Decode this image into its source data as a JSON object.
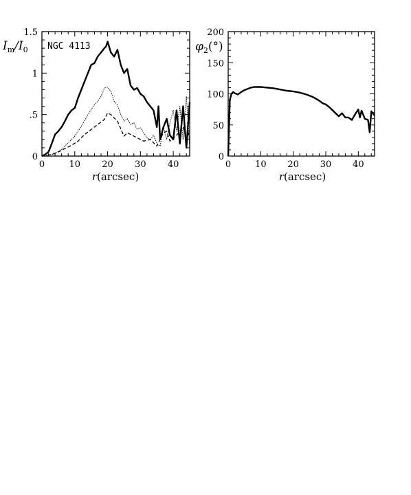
{
  "chart_data": [
    {
      "type": "line",
      "ylabel_main": "I",
      "ylabel_main_sub": "m",
      "ylabel_sep": "/I",
      "ylabel_den_sub": "0",
      "xlabel_r": "r",
      "xlabel_unit": "(arcsec)",
      "annotation": "NGC 4113",
      "xlim": [
        0,
        45
      ],
      "ylim": [
        0,
        1.5
      ],
      "xticks": [
        0,
        10,
        20,
        30,
        40
      ],
      "xtick_labels": [
        "0",
        "10",
        "20",
        "30",
        "40"
      ],
      "yticks": [
        0,
        0.5,
        1,
        1.5
      ],
      "ytick_labels": [
        "0",
        ".5",
        "1",
        "1.5"
      ],
      "series": [
        {
          "style": "solid-thick",
          "x": [
            0,
            1,
            2,
            3,
            4,
            5,
            6,
            7,
            8,
            9,
            10,
            11,
            12,
            13,
            14,
            15,
            16,
            17,
            18,
            19,
            19.5,
            20,
            21,
            22,
            23,
            24,
            25,
            26,
            27,
            28,
            29,
            30,
            31,
            32,
            33,
            34,
            35,
            35.5,
            36,
            37,
            38,
            39,
            40,
            41,
            42,
            43,
            44,
            45
          ],
          "y": [
            0.0,
            0.02,
            0.05,
            0.15,
            0.26,
            0.3,
            0.35,
            0.42,
            0.5,
            0.55,
            0.58,
            0.7,
            0.8,
            0.9,
            1.0,
            1.1,
            1.12,
            1.2,
            1.25,
            1.3,
            1.32,
            1.38,
            1.25,
            1.2,
            1.28,
            1.1,
            1.0,
            1.05,
            0.85,
            0.8,
            0.82,
            0.75,
            0.72,
            0.65,
            0.6,
            0.55,
            0.35,
            0.6,
            0.2,
            0.35,
            0.45,
            0.25,
            0.2,
            0.55,
            0.15,
            0.6,
            0.1,
            0.65
          ]
        },
        {
          "style": "dotted",
          "x": [
            0,
            2,
            4,
            6,
            8,
            10,
            12,
            14,
            15,
            16,
            17,
            18,
            19,
            20,
            21,
            22,
            23,
            24,
            25,
            26,
            27,
            28,
            29,
            30,
            31,
            32,
            33,
            34,
            35,
            36,
            37,
            38,
            39,
            40,
            41,
            42,
            43,
            44,
            45
          ],
          "y": [
            0.0,
            0.01,
            0.03,
            0.08,
            0.16,
            0.24,
            0.36,
            0.5,
            0.56,
            0.62,
            0.66,
            0.72,
            0.82,
            0.83,
            0.78,
            0.66,
            0.62,
            0.5,
            0.42,
            0.45,
            0.38,
            0.4,
            0.32,
            0.34,
            0.28,
            0.22,
            0.2,
            0.25,
            0.15,
            0.12,
            0.35,
            0.2,
            0.4,
            0.55,
            0.3,
            0.6,
            0.2,
            0.72,
            0.1
          ]
        },
        {
          "style": "dashed",
          "x": [
            0,
            3,
            5,
            7,
            9,
            11,
            13,
            15,
            17,
            19,
            20,
            21,
            23,
            25,
            26,
            27,
            29,
            31,
            33,
            35,
            37,
            38,
            39,
            41,
            43,
            44,
            45
          ],
          "y": [
            0.0,
            0.02,
            0.05,
            0.09,
            0.13,
            0.18,
            0.26,
            0.32,
            0.38,
            0.44,
            0.52,
            0.5,
            0.42,
            0.24,
            0.28,
            0.26,
            0.22,
            0.18,
            0.2,
            0.12,
            0.28,
            0.3,
            0.18,
            0.25,
            0.35,
            0.2,
            0.3
          ]
        }
      ]
    },
    {
      "type": "line",
      "ylabel_main": "φ",
      "ylabel_main_sub": "2",
      "ylabel_unit": "(°)",
      "xlabel_r": "r",
      "xlabel_unit": "(arcsec)",
      "xlim": [
        0,
        45
      ],
      "ylim": [
        0,
        200
      ],
      "xticks": [
        0,
        10,
        20,
        30,
        40
      ],
      "xtick_labels": [
        "0",
        "10",
        "20",
        "30",
        "40"
      ],
      "yticks": [
        0,
        50,
        100,
        150,
        200
      ],
      "ytick_labels": [
        "0",
        "50",
        "100",
        "150",
        "200"
      ],
      "series": [
        {
          "style": "solid-thick",
          "x": [
            0,
            0.5,
            1,
            1.5,
            2,
            3,
            4,
            5,
            6,
            7,
            8,
            10,
            12,
            14,
            16,
            18,
            20,
            22,
            24,
            26,
            27,
            28,
            29,
            30,
            31,
            32,
            33,
            34,
            35,
            36,
            37,
            38,
            39,
            40,
            40.5,
            41,
            42,
            43,
            43.5,
            44,
            45
          ],
          "y": [
            0,
            90,
            100,
            103,
            101,
            99,
            103,
            106,
            108,
            110,
            111,
            111,
            110,
            109,
            107,
            105,
            104,
            102,
            99,
            95,
            92,
            89,
            85,
            83,
            79,
            74,
            69,
            64,
            69,
            62,
            62,
            58,
            67,
            75,
            62,
            73,
            60,
            58,
            38,
            72,
            65
          ]
        }
      ]
    }
  ]
}
